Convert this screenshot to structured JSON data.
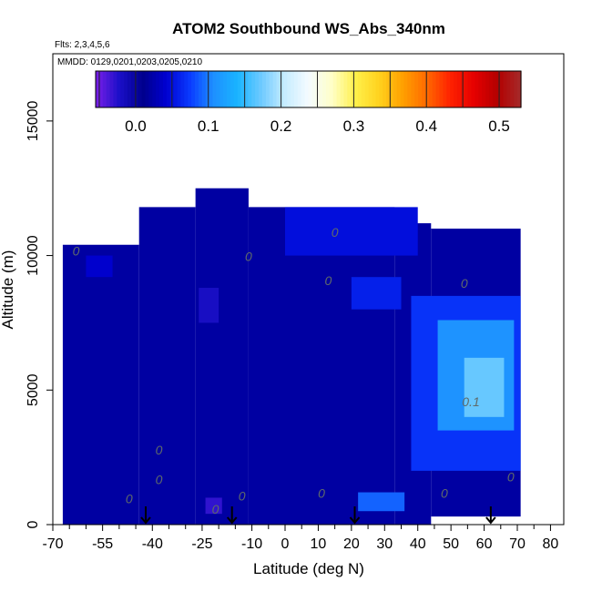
{
  "chart_data": {
    "type": "heatmap",
    "title": "ATOM2 Southbound WS_Abs_340nm",
    "flights_note": "Flts: 2,3,4,5,6",
    "dates_note": "MMDD: 0129,0201,0203,0205,0210",
    "xlabel": "Latitude (deg N)",
    "ylabel": "Altitude (m)",
    "xlim": [
      -70,
      84
    ],
    "ylim": [
      0,
      17500
    ],
    "x_tick_labels": [
      "-70",
      "-55",
      "-40",
      "-25",
      "-10",
      "0",
      "10",
      "20",
      "30",
      "40",
      "50",
      "60",
      "70",
      "80"
    ],
    "x_tick_values": [
      -70,
      -55,
      -40,
      -25,
      -10,
      0,
      10,
      20,
      30,
      40,
      50,
      60,
      70,
      80
    ],
    "x_minor_ticks": [
      -65,
      -60,
      -50,
      -45,
      -35,
      -30,
      -20,
      -15,
      -5,
      5,
      15,
      25,
      35,
      45,
      55,
      65,
      75
    ],
    "y_ticks": [
      0,
      5000,
      10000,
      15000
    ],
    "y_tick_labels": [
      "0",
      "5000",
      "10000",
      "15000"
    ],
    "colorbar": {
      "range": [
        -0.055,
        0.53
      ],
      "tick_values": [
        0.0,
        0.1,
        0.2,
        0.3,
        0.4,
        0.5
      ],
      "tick_labels": [
        "0.0",
        "0.1",
        "0.2",
        "0.3",
        "0.4",
        "0.5"
      ],
      "colors": [
        "#7b1fe8",
        "#1a0fc8",
        "#00008c",
        "#0000d2",
        "#0a3cff",
        "#1e90ff",
        "#19b4ff",
        "#6dcaff",
        "#c6ecff",
        "#f4fbff",
        "#ffffc8",
        "#fff04a",
        "#ffd21e",
        "#ffa000",
        "#ff6a00",
        "#ff2200",
        "#e60000",
        "#b40000",
        "#a52a2a"
      ]
    },
    "data_region": [
      {
        "lat": [
          -67,
          -44
        ],
        "alt": [
          0,
          10400
        ]
      },
      {
        "lat": [
          -44,
          -27
        ],
        "alt": [
          0,
          11800
        ]
      },
      {
        "lat": [
          -27,
          -11
        ],
        "alt": [
          0,
          12500
        ]
      },
      {
        "lat": [
          -11,
          33
        ],
        "alt": [
          0,
          11800
        ]
      },
      {
        "lat": [
          33,
          44
        ],
        "alt": [
          0,
          11200
        ]
      },
      {
        "lat": [
          44,
          71
        ],
        "alt": [
          300,
          11000
        ]
      }
    ],
    "cells": [
      {
        "lat": [
          -26,
          -20
        ],
        "alt": [
          7500,
          8800
        ],
        "value": -0.02
      },
      {
        "lat": [
          -24,
          -19
        ],
        "alt": [
          400,
          1000
        ],
        "value": -0.03
      },
      {
        "lat": [
          -60,
          -52
        ],
        "alt": [
          9200,
          10000
        ],
        "value": 0.04
      },
      {
        "lat": [
          0,
          40
        ],
        "alt": [
          10000,
          11800
        ],
        "value": 0.05
      },
      {
        "lat": [
          20,
          35
        ],
        "alt": [
          8000,
          9200
        ],
        "value": 0.06
      },
      {
        "lat": [
          22,
          36
        ],
        "alt": [
          500,
          1200
        ],
        "value": 0.09
      },
      {
        "lat": [
          38,
          71
        ],
        "alt": [
          2000,
          8500
        ],
        "value": 0.07
      },
      {
        "lat": [
          46,
          69
        ],
        "alt": [
          3500,
          7600
        ],
        "value": 0.11
      },
      {
        "lat": [
          54,
          66
        ],
        "alt": [
          4000,
          6200
        ],
        "value": 0.17
      }
    ],
    "background_value": 0.02,
    "contour_labels": [
      {
        "text": "0",
        "lat": -63,
        "alt": 10000
      },
      {
        "text": "0",
        "lat": -11,
        "alt": 9800
      },
      {
        "text": "0",
        "lat": 15,
        "alt": 10700
      },
      {
        "text": "0",
        "lat": 13,
        "alt": 8900
      },
      {
        "text": "0",
        "lat": 54,
        "alt": 8800
      },
      {
        "text": "0.1",
        "lat": 56,
        "alt": 4400
      },
      {
        "text": "0",
        "lat": -38,
        "alt": 2600
      },
      {
        "text": "0",
        "lat": -38,
        "alt": 1500
      },
      {
        "text": "0",
        "lat": -47,
        "alt": 800
      },
      {
        "text": "0",
        "lat": -21,
        "alt": 400
      },
      {
        "text": "0",
        "lat": -13,
        "alt": 900
      },
      {
        "text": "0",
        "lat": 11,
        "alt": 1000
      },
      {
        "text": "0",
        "lat": 48,
        "alt": 1000
      },
      {
        "text": "0",
        "lat": 68,
        "alt": 1600
      }
    ],
    "flight_markers_lat": [
      -42,
      -16,
      21,
      62
    ]
  }
}
